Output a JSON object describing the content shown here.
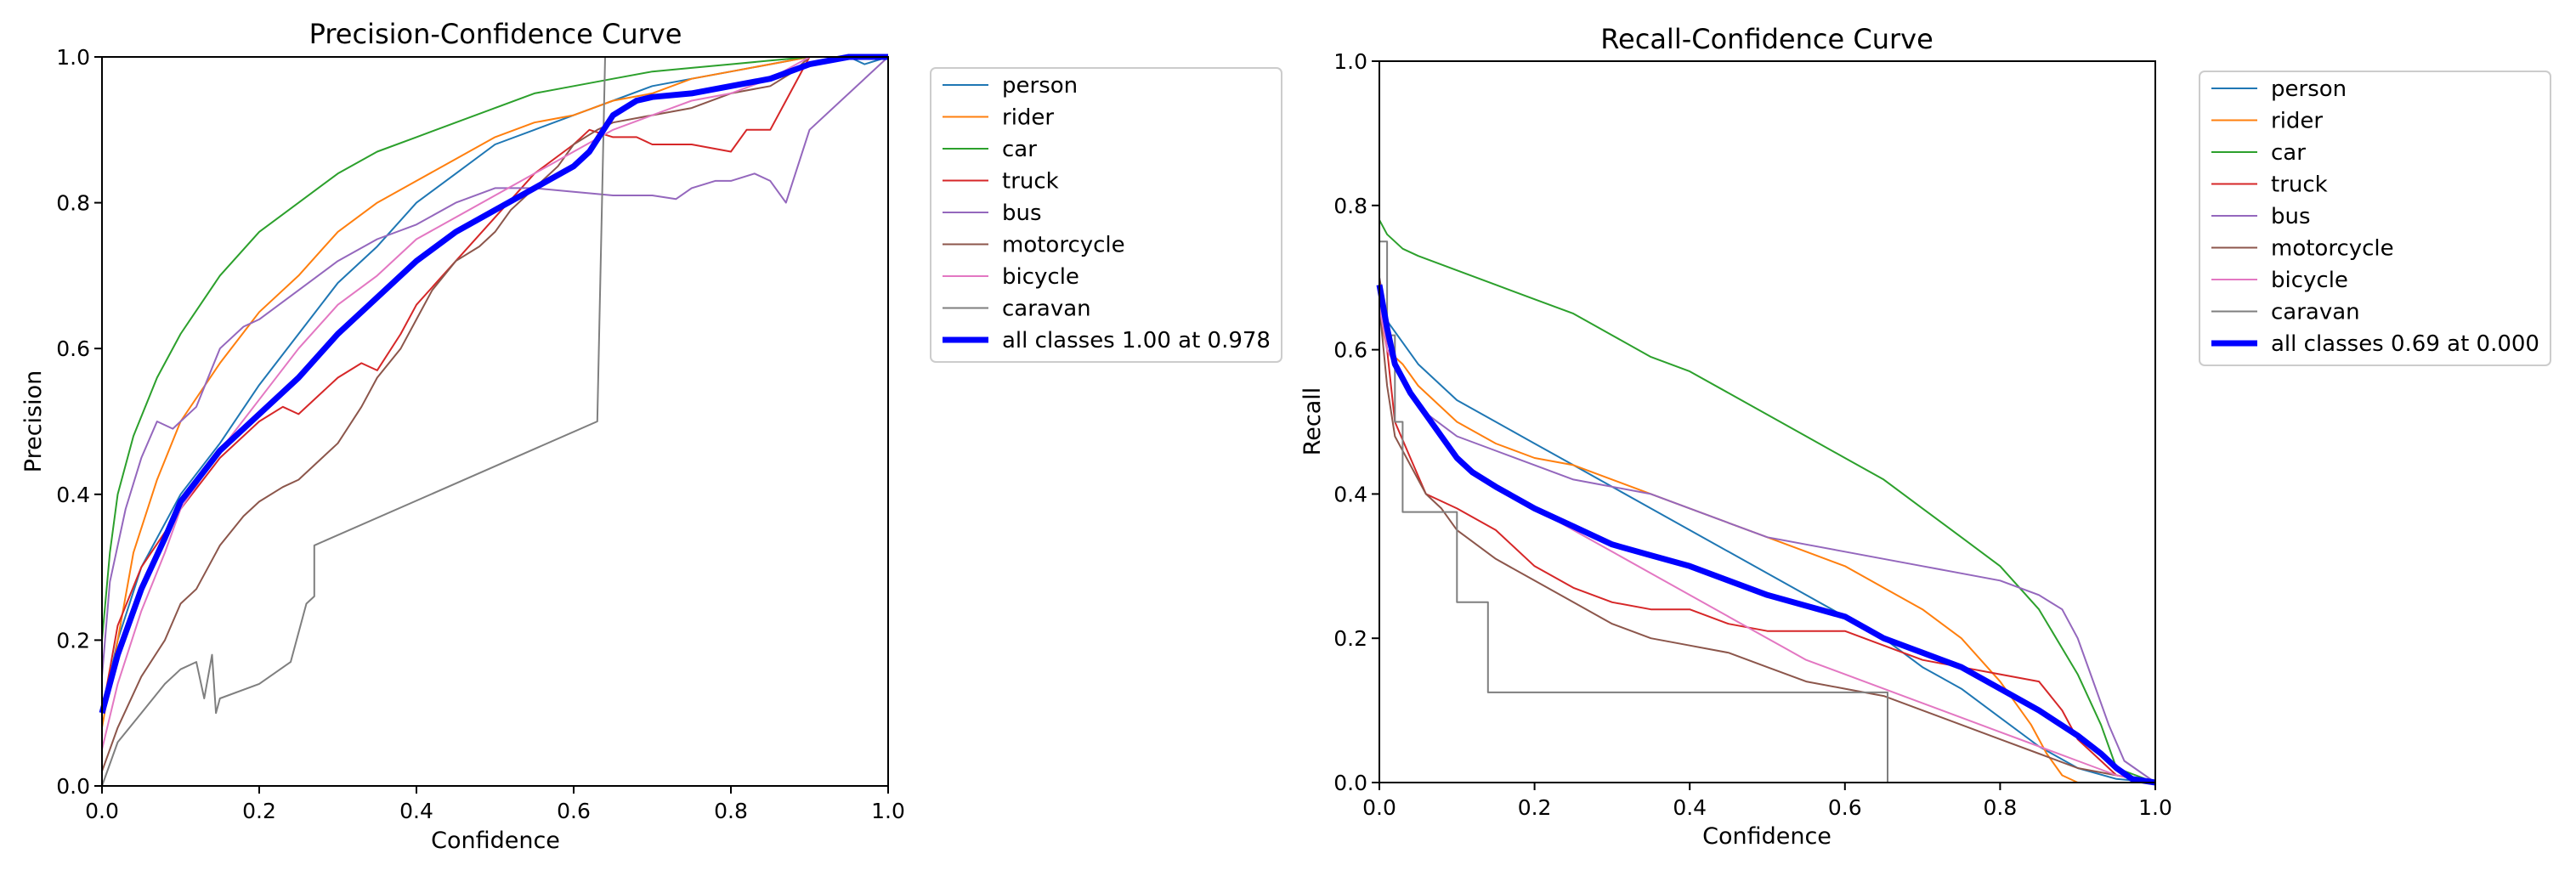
{
  "chart_data": [
    {
      "type": "line",
      "title": "Precision-Confidence Curve",
      "xlabel": "Confidence",
      "ylabel": "Precision",
      "xlim": [
        0,
        1
      ],
      "ylim": [
        0,
        1
      ],
      "xticks": [
        "0.0",
        "0.2",
        "0.4",
        "0.6",
        "0.8",
        "1.0"
      ],
      "yticks": [
        "0.0",
        "0.2",
        "0.4",
        "0.6",
        "0.8",
        "1.0"
      ],
      "grid": false,
      "legend_position": "outside-right",
      "series": [
        {
          "name": "person",
          "color": "#1f77b4",
          "x": [
            0.0,
            0.02,
            0.05,
            0.1,
            0.15,
            0.2,
            0.25,
            0.3,
            0.35,
            0.4,
            0.45,
            0.5,
            0.55,
            0.6,
            0.65,
            0.7,
            0.75,
            0.8,
            0.85,
            0.9,
            0.95,
            0.97,
            1.0
          ],
          "y": [
            0.1,
            0.2,
            0.3,
            0.4,
            0.47,
            0.55,
            0.62,
            0.69,
            0.74,
            0.8,
            0.84,
            0.88,
            0.9,
            0.92,
            0.94,
            0.96,
            0.97,
            0.98,
            0.99,
            1.0,
            1.0,
            0.99,
            1.0
          ]
        },
        {
          "name": "rider",
          "color": "#ff7f0e",
          "x": [
            0.0,
            0.02,
            0.04,
            0.07,
            0.1,
            0.15,
            0.2,
            0.25,
            0.3,
            0.35,
            0.4,
            0.45,
            0.5,
            0.55,
            0.6,
            0.65,
            0.7,
            0.75,
            0.8,
            0.85,
            0.9,
            1.0
          ],
          "y": [
            0.08,
            0.2,
            0.32,
            0.42,
            0.5,
            0.58,
            0.65,
            0.7,
            0.76,
            0.8,
            0.83,
            0.86,
            0.89,
            0.91,
            0.92,
            0.94,
            0.95,
            0.97,
            0.98,
            0.99,
            1.0,
            1.0
          ]
        },
        {
          "name": "car",
          "color": "#2ca02c",
          "x": [
            0.0,
            0.01,
            0.02,
            0.04,
            0.07,
            0.1,
            0.15,
            0.2,
            0.25,
            0.3,
            0.35,
            0.4,
            0.45,
            0.5,
            0.55,
            0.6,
            0.65,
            0.7,
            0.75,
            0.8,
            0.85,
            0.9,
            1.0
          ],
          "y": [
            0.2,
            0.32,
            0.4,
            0.48,
            0.56,
            0.62,
            0.7,
            0.76,
            0.8,
            0.84,
            0.87,
            0.89,
            0.91,
            0.93,
            0.95,
            0.96,
            0.97,
            0.98,
            0.985,
            0.99,
            0.995,
            1.0,
            1.0
          ]
        },
        {
          "name": "truck",
          "color": "#d62728",
          "x": [
            0.0,
            0.02,
            0.05,
            0.1,
            0.15,
            0.2,
            0.23,
            0.25,
            0.3,
            0.33,
            0.35,
            0.38,
            0.4,
            0.45,
            0.5,
            0.55,
            0.6,
            0.62,
            0.65,
            0.68,
            0.7,
            0.75,
            0.8,
            0.82,
            0.85,
            0.87,
            0.9,
            1.0
          ],
          "y": [
            0.1,
            0.22,
            0.3,
            0.38,
            0.45,
            0.5,
            0.52,
            0.51,
            0.56,
            0.58,
            0.57,
            0.62,
            0.66,
            0.72,
            0.78,
            0.84,
            0.88,
            0.9,
            0.89,
            0.89,
            0.88,
            0.88,
            0.87,
            0.9,
            0.9,
            0.94,
            1.0,
            1.0
          ]
        },
        {
          "name": "bus",
          "color": "#9467bd",
          "x": [
            0.0,
            0.01,
            0.03,
            0.05,
            0.07,
            0.09,
            0.1,
            0.12,
            0.15,
            0.18,
            0.2,
            0.25,
            0.3,
            0.35,
            0.4,
            0.45,
            0.5,
            0.53,
            0.55,
            0.6,
            0.65,
            0.7,
            0.73,
            0.75,
            0.78,
            0.8,
            0.83,
            0.85,
            0.87,
            0.9,
            1.0
          ],
          "y": [
            0.15,
            0.28,
            0.38,
            0.45,
            0.5,
            0.49,
            0.5,
            0.52,
            0.6,
            0.63,
            0.64,
            0.68,
            0.72,
            0.75,
            0.77,
            0.8,
            0.82,
            0.82,
            0.82,
            0.815,
            0.81,
            0.81,
            0.805,
            0.82,
            0.83,
            0.83,
            0.84,
            0.83,
            0.8,
            0.9,
            1.0
          ]
        },
        {
          "name": "motorcycle",
          "color": "#8c564b",
          "x": [
            0.0,
            0.02,
            0.05,
            0.08,
            0.1,
            0.12,
            0.15,
            0.18,
            0.2,
            0.23,
            0.25,
            0.28,
            0.3,
            0.33,
            0.35,
            0.38,
            0.4,
            0.42,
            0.45,
            0.48,
            0.5,
            0.52,
            0.55,
            0.58,
            0.6,
            0.63,
            0.65,
            0.7,
            0.75,
            0.8,
            0.85,
            0.88,
            0.9,
            1.0
          ],
          "y": [
            0.02,
            0.08,
            0.15,
            0.2,
            0.25,
            0.27,
            0.33,
            0.37,
            0.39,
            0.41,
            0.42,
            0.45,
            0.47,
            0.52,
            0.56,
            0.6,
            0.64,
            0.68,
            0.72,
            0.74,
            0.76,
            0.79,
            0.82,
            0.85,
            0.88,
            0.9,
            0.91,
            0.92,
            0.93,
            0.95,
            0.96,
            0.98,
            1.0,
            1.0
          ]
        },
        {
          "name": "bicycle",
          "color": "#e377c2",
          "x": [
            0.0,
            0.02,
            0.05,
            0.08,
            0.1,
            0.15,
            0.2,
            0.25,
            0.3,
            0.35,
            0.4,
            0.45,
            0.5,
            0.55,
            0.6,
            0.65,
            0.7,
            0.75,
            0.8,
            0.85,
            0.9,
            1.0
          ],
          "y": [
            0.05,
            0.14,
            0.24,
            0.32,
            0.38,
            0.46,
            0.53,
            0.6,
            0.66,
            0.7,
            0.75,
            0.78,
            0.81,
            0.84,
            0.87,
            0.9,
            0.92,
            0.94,
            0.95,
            0.97,
            1.0,
            1.0
          ]
        },
        {
          "name": "caravan",
          "color": "#7f7f7f",
          "x": [
            0.0,
            0.02,
            0.05,
            0.08,
            0.1,
            0.12,
            0.13,
            0.14,
            0.145,
            0.15,
            0.2,
            0.24,
            0.26,
            0.27,
            0.27,
            0.63,
            0.64,
            0.64,
            0.65,
            1.0
          ],
          "y": [
            0.0,
            0.06,
            0.1,
            0.14,
            0.16,
            0.17,
            0.12,
            0.18,
            0.1,
            0.12,
            0.14,
            0.17,
            0.25,
            0.26,
            0.33,
            0.5,
            1.0,
            1.0,
            1.0,
            1.0
          ]
        },
        {
          "name": "all classes 1.00 at 0.978",
          "color": "#0000ff",
          "x": [
            0.0,
            0.02,
            0.05,
            0.08,
            0.1,
            0.15,
            0.2,
            0.25,
            0.3,
            0.35,
            0.4,
            0.45,
            0.5,
            0.55,
            0.6,
            0.62,
            0.65,
            0.68,
            0.7,
            0.75,
            0.8,
            0.85,
            0.9,
            0.95,
            1.0
          ],
          "y": [
            0.1,
            0.18,
            0.27,
            0.34,
            0.39,
            0.46,
            0.51,
            0.56,
            0.62,
            0.67,
            0.72,
            0.76,
            0.79,
            0.82,
            0.85,
            0.87,
            0.92,
            0.94,
            0.945,
            0.95,
            0.96,
            0.97,
            0.99,
            1.0,
            1.0
          ],
          "bold": true
        }
      ]
    },
    {
      "type": "line",
      "title": "Recall-Confidence Curve",
      "xlabel": "Confidence",
      "ylabel": "Recall",
      "xlim": [
        0,
        1
      ],
      "ylim": [
        0,
        1
      ],
      "xticks": [
        "0.0",
        "0.2",
        "0.4",
        "0.6",
        "0.8",
        "1.0"
      ],
      "yticks": [
        "0.0",
        "0.2",
        "0.4",
        "0.6",
        "0.8",
        "1.0"
      ],
      "grid": false,
      "legend_position": "outside-right",
      "series": [
        {
          "name": "person",
          "color": "#1f77b4",
          "x": [
            0.0,
            0.01,
            0.03,
            0.05,
            0.1,
            0.15,
            0.2,
            0.25,
            0.3,
            0.35,
            0.4,
            0.45,
            0.5,
            0.55,
            0.6,
            0.65,
            0.7,
            0.75,
            0.8,
            0.85,
            0.9,
            0.95,
            1.0
          ],
          "y": [
            0.7,
            0.64,
            0.61,
            0.58,
            0.53,
            0.5,
            0.47,
            0.44,
            0.41,
            0.38,
            0.35,
            0.32,
            0.29,
            0.26,
            0.23,
            0.2,
            0.16,
            0.13,
            0.09,
            0.05,
            0.02,
            0.005,
            0.0
          ]
        },
        {
          "name": "rider",
          "color": "#ff7f0e",
          "x": [
            0.0,
            0.01,
            0.03,
            0.05,
            0.1,
            0.15,
            0.2,
            0.25,
            0.3,
            0.35,
            0.4,
            0.45,
            0.5,
            0.55,
            0.6,
            0.65,
            0.7,
            0.75,
            0.8,
            0.84,
            0.86,
            0.88,
            0.9
          ],
          "y": [
            0.65,
            0.6,
            0.58,
            0.55,
            0.5,
            0.47,
            0.45,
            0.44,
            0.42,
            0.4,
            0.38,
            0.36,
            0.34,
            0.32,
            0.3,
            0.27,
            0.24,
            0.2,
            0.14,
            0.08,
            0.04,
            0.01,
            0.0
          ]
        },
        {
          "name": "car",
          "color": "#2ca02c",
          "x": [
            0.0,
            0.01,
            0.03,
            0.05,
            0.1,
            0.15,
            0.2,
            0.25,
            0.3,
            0.35,
            0.4,
            0.45,
            0.5,
            0.55,
            0.6,
            0.65,
            0.7,
            0.75,
            0.8,
            0.85,
            0.9,
            0.93,
            0.95,
            1.0
          ],
          "y": [
            0.78,
            0.76,
            0.74,
            0.73,
            0.71,
            0.69,
            0.67,
            0.65,
            0.62,
            0.59,
            0.57,
            0.54,
            0.51,
            0.48,
            0.45,
            0.42,
            0.38,
            0.34,
            0.3,
            0.24,
            0.15,
            0.08,
            0.02,
            0.0
          ]
        },
        {
          "name": "truck",
          "color": "#d62728",
          "x": [
            0.0,
            0.01,
            0.02,
            0.04,
            0.06,
            0.1,
            0.15,
            0.2,
            0.25,
            0.3,
            0.35,
            0.4,
            0.45,
            0.5,
            0.55,
            0.6,
            0.65,
            0.7,
            0.75,
            0.8,
            0.85,
            0.88,
            0.9,
            0.93,
            0.95,
            1.0
          ],
          "y": [
            0.7,
            0.6,
            0.5,
            0.45,
            0.4,
            0.38,
            0.35,
            0.3,
            0.27,
            0.25,
            0.24,
            0.24,
            0.22,
            0.21,
            0.21,
            0.21,
            0.19,
            0.17,
            0.16,
            0.15,
            0.14,
            0.1,
            0.06,
            0.03,
            0.01,
            0.0
          ]
        },
        {
          "name": "bus",
          "color": "#9467bd",
          "x": [
            0.0,
            0.01,
            0.03,
            0.05,
            0.1,
            0.15,
            0.2,
            0.25,
            0.3,
            0.35,
            0.4,
            0.45,
            0.5,
            0.55,
            0.6,
            0.65,
            0.7,
            0.75,
            0.8,
            0.85,
            0.88,
            0.9,
            0.92,
            0.94,
            0.96,
            1.0
          ],
          "y": [
            0.68,
            0.6,
            0.56,
            0.52,
            0.48,
            0.46,
            0.44,
            0.42,
            0.41,
            0.4,
            0.38,
            0.36,
            0.34,
            0.33,
            0.32,
            0.31,
            0.3,
            0.29,
            0.28,
            0.26,
            0.24,
            0.2,
            0.14,
            0.08,
            0.03,
            0.0
          ]
        },
        {
          "name": "motorcycle",
          "color": "#8c564b",
          "x": [
            0.0,
            0.01,
            0.02,
            0.04,
            0.06,
            0.08,
            0.1,
            0.15,
            0.2,
            0.25,
            0.3,
            0.35,
            0.4,
            0.45,
            0.5,
            0.55,
            0.6,
            0.65,
            0.7,
            0.75,
            0.8,
            0.85,
            0.9,
            0.95,
            1.0
          ],
          "y": [
            0.66,
            0.55,
            0.48,
            0.44,
            0.4,
            0.38,
            0.35,
            0.31,
            0.28,
            0.25,
            0.22,
            0.2,
            0.19,
            0.18,
            0.16,
            0.14,
            0.13,
            0.12,
            0.1,
            0.08,
            0.06,
            0.04,
            0.02,
            0.01,
            0.0
          ]
        },
        {
          "name": "bicycle",
          "color": "#e377c2",
          "x": [
            0.0,
            0.01,
            0.03,
            0.05,
            0.1,
            0.15,
            0.2,
            0.25,
            0.3,
            0.35,
            0.4,
            0.45,
            0.5,
            0.55,
            0.6,
            0.65,
            0.7,
            0.75,
            0.8,
            0.85,
            0.9,
            0.95,
            1.0
          ],
          "y": [
            0.66,
            0.6,
            0.56,
            0.52,
            0.45,
            0.41,
            0.38,
            0.35,
            0.32,
            0.29,
            0.26,
            0.23,
            0.2,
            0.17,
            0.15,
            0.13,
            0.11,
            0.09,
            0.07,
            0.05,
            0.03,
            0.01,
            0.0
          ]
        },
        {
          "name": "caravan",
          "color": "#7f7f7f",
          "x": [
            0.0,
            0.01,
            0.01,
            0.02,
            0.02,
            0.03,
            0.03,
            0.1,
            0.1,
            0.14,
            0.14,
            0.655,
            0.655,
            1.0
          ],
          "y": [
            0.75,
            0.75,
            0.62,
            0.62,
            0.5,
            0.5,
            0.375,
            0.375,
            0.25,
            0.25,
            0.125,
            0.125,
            0.0,
            0.0
          ]
        },
        {
          "name": "all classes 0.69 at 0.000",
          "color": "#0000ff",
          "x": [
            0.0,
            0.01,
            0.02,
            0.04,
            0.06,
            0.08,
            0.1,
            0.12,
            0.15,
            0.2,
            0.25,
            0.3,
            0.35,
            0.4,
            0.45,
            0.5,
            0.55,
            0.6,
            0.65,
            0.7,
            0.75,
            0.8,
            0.85,
            0.9,
            0.93,
            0.95,
            0.97,
            1.0
          ],
          "y": [
            0.69,
            0.63,
            0.58,
            0.54,
            0.51,
            0.48,
            0.45,
            0.43,
            0.41,
            0.38,
            0.355,
            0.33,
            0.315,
            0.3,
            0.28,
            0.26,
            0.245,
            0.23,
            0.2,
            0.18,
            0.16,
            0.13,
            0.1,
            0.065,
            0.04,
            0.02,
            0.005,
            0.0
          ],
          "bold": true
        }
      ]
    }
  ]
}
